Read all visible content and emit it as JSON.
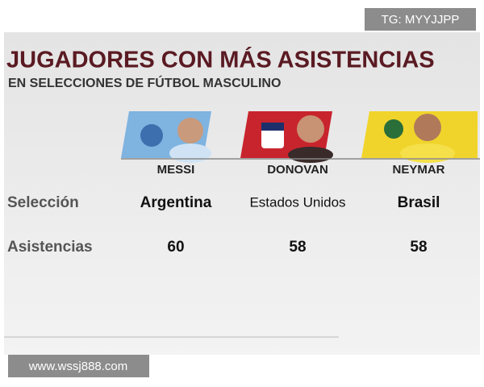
{
  "watermark_top": "TG: MYYJJPP",
  "header": {
    "title": "JUGADORES CON MÁS ASISTENCIAS",
    "subtitle": "EN SELECCIONES DE FÚTBOL MASCULINO"
  },
  "table": {
    "columns": [
      "MESSI",
      "DONOVAN",
      "NEYMAR"
    ],
    "rows": [
      {
        "label": "Selección",
        "cells": [
          "Argentina",
          "Estados Unidos",
          "Brasil"
        ]
      },
      {
        "label": "Asistencias",
        "cells": [
          60,
          58,
          58
        ]
      }
    ]
  },
  "watermark_bottom": "www.wssj888.com"
}
